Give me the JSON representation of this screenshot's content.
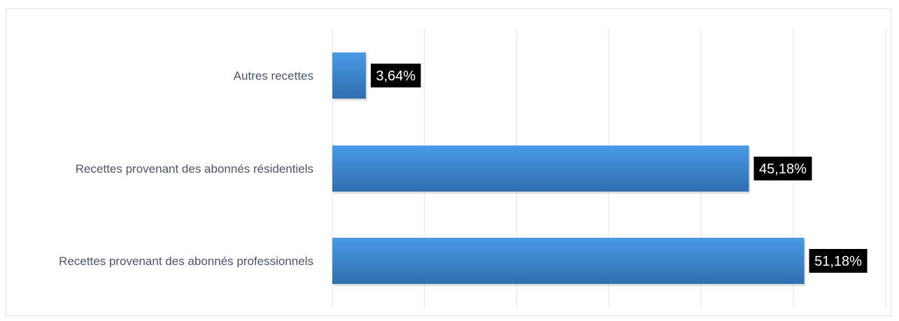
{
  "chart_data": {
    "type": "bar",
    "orientation": "horizontal",
    "title": "",
    "xlabel": "",
    "ylabel": "",
    "categories": [
      "Autres recettes",
      "Recettes provenant  des abonnés résidentiels",
      "Recettes provenant des abonnés professionnels"
    ],
    "values": [
      3.64,
      45.18,
      51.18
    ],
    "data_labels": [
      "3,64%",
      "45,18%",
      "51,18%"
    ],
    "xlim": [
      0,
      60
    ],
    "grid": "vertical",
    "legend": "none",
    "colors": {
      "bar_top": "#4a9ae6",
      "bar_bottom": "#2e6fb0",
      "label_bg": "#000000",
      "label_text": "#ffffff",
      "grid": "#e3e3ea",
      "category_text": "#4a5568"
    }
  }
}
